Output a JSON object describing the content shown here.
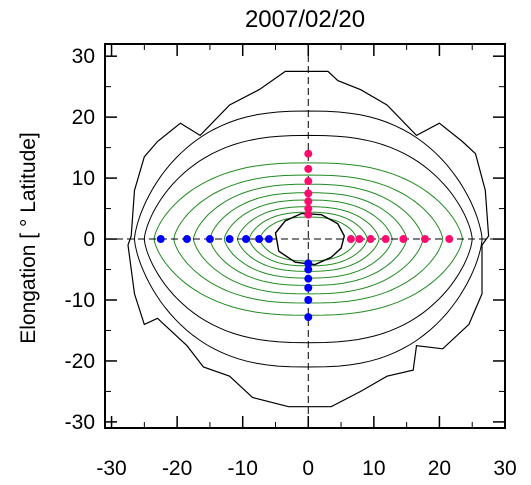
{
  "chart_data": {
    "type": "scatter",
    "title": "2007/02/20",
    "xlabel": "",
    "ylabel": "Elongation [ ° Latitude]",
    "xlim": [
      -31,
      30
    ],
    "ylim": [
      -31,
      32
    ],
    "x_ticks": [
      -30,
      -20,
      -10,
      0,
      10,
      20,
      30
    ],
    "y_ticks": [
      -30,
      -20,
      -10,
      0,
      10,
      20,
      30
    ],
    "x_tick_labels": [
      "-30",
      "-20",
      "-10",
      "0",
      "10",
      "20",
      "30"
    ],
    "y_tick_labels": [
      "-30",
      "-20",
      "-10",
      "0",
      "10",
      "20",
      "30"
    ],
    "colors": {
      "axes": "#000000",
      "contours": "#228b22",
      "outline": "#000000",
      "blue_points": "#0000ff",
      "magenta_points": "#ff0d6e"
    },
    "series": [
      {
        "color": "blue",
        "points": [
          {
            "x": -22.5,
            "y": 0
          },
          {
            "x": -18.5,
            "y": 0
          },
          {
            "x": -15.0,
            "y": 0
          },
          {
            "x": -12.0,
            "y": 0
          },
          {
            "x": -9.5,
            "y": 0
          },
          {
            "x": -7.5,
            "y": 0
          },
          {
            "x": -6.0,
            "y": 0
          },
          {
            "x": 0,
            "y": -4.0
          },
          {
            "x": 0,
            "y": -5.0
          },
          {
            "x": 0,
            "y": -6.5
          },
          {
            "x": 0,
            "y": -8.0
          },
          {
            "x": 0,
            "y": -10.0
          },
          {
            "x": 0,
            "y": -12.8
          }
        ]
      },
      {
        "color": "magenta",
        "points": [
          {
            "x": 6.5,
            "y": 0
          },
          {
            "x": 7.8,
            "y": 0
          },
          {
            "x": 9.5,
            "y": 0
          },
          {
            "x": 11.8,
            "y": 0
          },
          {
            "x": 14.5,
            "y": 0
          },
          {
            "x": 17.8,
            "y": 0
          },
          {
            "x": 21.5,
            "y": 0
          },
          {
            "x": 0,
            "y": 4.0
          },
          {
            "x": 0,
            "y": 5.0
          },
          {
            "x": 0,
            "y": 6.2
          },
          {
            "x": 0,
            "y": 7.5
          },
          {
            "x": 0,
            "y": 9.5
          },
          {
            "x": 0,
            "y": 11.5
          },
          {
            "x": 0,
            "y": 14.0
          }
        ]
      }
    ],
    "green_contours": [
      {
        "a": 23.5,
        "b": 12.5
      },
      {
        "a": 20.5,
        "b": 10.5
      },
      {
        "a": 17.5,
        "b": 9.0
      },
      {
        "a": 15.0,
        "b": 7.6
      },
      {
        "a": 12.8,
        "b": 6.4
      },
      {
        "a": 10.8,
        "b": 5.3
      },
      {
        "a": 9.0,
        "b": 4.4
      },
      {
        "a": 7.4,
        "b": 3.6
      }
    ],
    "black_contours": [
      {
        "a": 25.0,
        "b": 17.0
      },
      {
        "a": 26.5,
        "b": 21.0
      }
    ],
    "outer_boundary": [
      [
        -3.5,
        27.5
      ],
      [
        -7.5,
        24.5
      ],
      [
        -12.0,
        22.0
      ],
      [
        -16.5,
        17.0
      ],
      [
        -19.5,
        19.0
      ],
      [
        -23.0,
        16.0
      ],
      [
        -25.0,
        13.5
      ],
      [
        -26.5,
        8.0
      ],
      [
        -27.0,
        0.5
      ],
      [
        -27.5,
        -1.0
      ],
      [
        -26.5,
        -9.0
      ],
      [
        -25.0,
        -14.0
      ],
      [
        -23.0,
        -13.0
      ],
      [
        -18.5,
        -17.5
      ],
      [
        -16.0,
        -21.0
      ],
      [
        -12.0,
        -22.5
      ],
      [
        -8.5,
        -26.0
      ],
      [
        -3.0,
        -27.5
      ],
      [
        0.0,
        -27.5
      ],
      [
        3.5,
        -27.5
      ],
      [
        8.0,
        -25.0
      ],
      [
        12.0,
        -22.5
      ],
      [
        16.0,
        -21.5
      ],
      [
        16.5,
        -17.5
      ],
      [
        20.5,
        -18.0
      ],
      [
        24.5,
        -14.0
      ],
      [
        26.5,
        -9.0
      ],
      [
        26.5,
        -1.0
      ],
      [
        27.5,
        0.5
      ],
      [
        27.0,
        8.0
      ],
      [
        25.5,
        14.0
      ],
      [
        23.5,
        16.0
      ],
      [
        20.0,
        19.0
      ],
      [
        16.5,
        17.0
      ],
      [
        12.0,
        22.0
      ],
      [
        8.0,
        24.5
      ],
      [
        4.5,
        26.0
      ],
      [
        3.0,
        27.5
      ],
      [
        0.0,
        27.5
      ]
    ],
    "inner_hole": [
      [
        -5.0,
        1.0
      ],
      [
        -3.5,
        3.0
      ],
      [
        -1.0,
        4.2
      ],
      [
        2.0,
        4.0
      ],
      [
        4.5,
        2.5
      ],
      [
        5.5,
        0.5
      ],
      [
        5.0,
        -1.5
      ],
      [
        3.5,
        -3.0
      ],
      [
        1.0,
        -4.2
      ],
      [
        -2.0,
        -3.8
      ],
      [
        -4.5,
        -2.0
      ]
    ],
    "grid": false,
    "legend": "none"
  }
}
